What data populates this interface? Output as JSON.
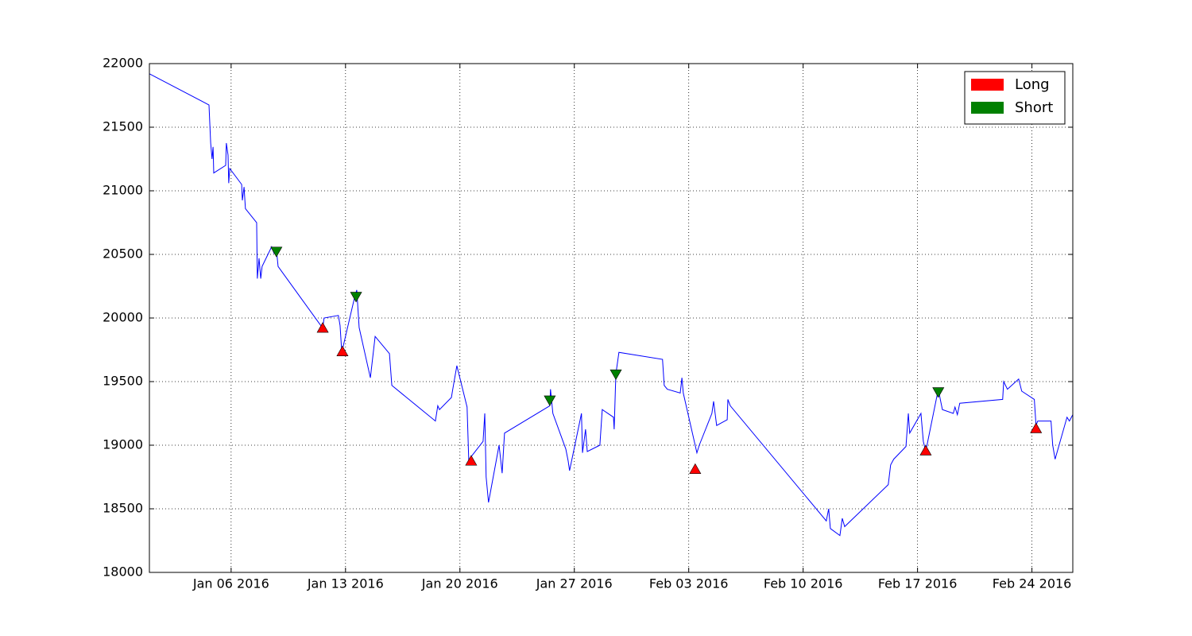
{
  "chart_data": {
    "type": "line",
    "xlim": [
      "2016-01-01 00:00",
      "2016-02-26 12:00"
    ],
    "ylim": [
      18000,
      22000
    ],
    "yticks": [
      18000,
      18500,
      19000,
      19500,
      20000,
      20500,
      21000,
      21500,
      22000
    ],
    "xticks": [
      {
        "value": "2016-01-06 00:00",
        "label": "Jan 06 2016"
      },
      {
        "value": "2016-01-13 00:00",
        "label": "Jan 13 2016"
      },
      {
        "value": "2016-01-20 00:00",
        "label": "Jan 20 2016"
      },
      {
        "value": "2016-01-27 00:00",
        "label": "Jan 27 2016"
      },
      {
        "value": "2016-02-03 00:00",
        "label": "Feb 03 2016"
      },
      {
        "value": "2016-02-10 00:00",
        "label": "Feb 10 2016"
      },
      {
        "value": "2016-02-17 00:00",
        "label": "Feb 17 2016"
      },
      {
        "value": "2016-02-24 00:00",
        "label": "Feb 24 2016"
      }
    ],
    "grid": true,
    "legend": "upper right",
    "series": [
      {
        "color": "#0000ff",
        "x": [
          "2016-01-01 00:00",
          "2016-01-04 15:30",
          "2016-01-04 18:00",
          "2016-01-04 20:00",
          "2016-01-04 21:30",
          "2016-01-04 22:30",
          "2016-01-05 16:00",
          "2016-01-05 17:00",
          "2016-01-05 19:30",
          "2016-01-05 20:30",
          "2016-01-05 22:00",
          "2016-01-06 15:30",
          "2016-01-06 16:30",
          "2016-01-06 19:00",
          "2016-01-06 21:00",
          "2016-01-07 13:30",
          "2016-01-07 14:30",
          "2016-01-07 17:00",
          "2016-01-07 19:30",
          "2016-01-07 21:30",
          "2016-01-08 11:30",
          "2016-01-08 15:00",
          "2016-01-08 18:30",
          "2016-01-08 21:00",
          "2016-01-11 14:30",
          "2016-01-11 16:30",
          "2016-01-12 13:30",
          "2016-01-12 16:00",
          "2016-01-12 18:30",
          "2016-01-13 13:00",
          "2016-01-13 16:30",
          "2016-01-13 20:00",
          "2016-01-14 12:30",
          "2016-01-14 19:30",
          "2016-01-15 16:30",
          "2016-01-15 20:00",
          "2016-01-18 12:00",
          "2016-01-18 15:30",
          "2016-01-18 18:00",
          "2016-01-19 11:30",
          "2016-01-19 13:30",
          "2016-01-19 19:30",
          "2016-01-20 10:30",
          "2016-01-20 13:00",
          "2016-01-20 16:30",
          "2016-01-21 10:00",
          "2016-01-21 12:30",
          "2016-01-21 14:30",
          "2016-01-21 18:00",
          "2016-01-22 09:30",
          "2016-01-22 14:00",
          "2016-01-22 17:30",
          "2016-01-25 12:00",
          "2016-01-25 13:00",
          "2016-01-25 16:30",
          "2016-01-26 11:30",
          "2016-01-26 15:00",
          "2016-01-26 17:00",
          "2016-01-27 10:30",
          "2016-01-27 12:00",
          "2016-01-27 16:30",
          "2016-01-27 19:00",
          "2016-01-28 13:30",
          "2016-01-28 17:00",
          "2016-01-29 09:30",
          "2016-01-29 10:30",
          "2016-01-29 13:00",
          "2016-01-29 17:30",
          "2016-02-01 09:30",
          "2016-02-01 12:00",
          "2016-02-01 16:30",
          "2016-02-02 11:30",
          "2016-02-02 14:00",
          "2016-02-02 16:00",
          "2016-02-03 12:00",
          "2016-02-03 15:30",
          "2016-02-04 10:00",
          "2016-02-04 12:30",
          "2016-02-04 17:00",
          "2016-02-05 08:30",
          "2016-02-05 09:30",
          "2016-02-05 13:00",
          "2016-02-11 10:00",
          "2016-02-11 13:30",
          "2016-02-11 16:00",
          "2016-02-12 06:00",
          "2016-02-12 09:30",
          "2016-02-12 13:00",
          "2016-02-15 05:00",
          "2016-02-15 08:30",
          "2016-02-15 13:00",
          "2016-02-16 07:00",
          "2016-02-16 10:30",
          "2016-02-16 12:30",
          "2016-02-17 05:00",
          "2016-02-17 08:30",
          "2016-02-17 12:00",
          "2016-02-18 06:30",
          "2016-02-18 10:00",
          "2016-02-18 12:30",
          "2016-02-19 04:30",
          "2016-02-19 07:00",
          "2016-02-19 10:30",
          "2016-02-19 14:00",
          "2016-02-22 05:00",
          "2016-02-22 06:30",
          "2016-02-22 12:00",
          "2016-02-23 04:30",
          "2016-02-23 09:00",
          "2016-02-24 03:30",
          "2016-02-24 06:00",
          "2016-02-24 08:30",
          "2016-02-25 04:00",
          "2016-02-25 06:30",
          "2016-02-25 10:00",
          "2016-02-26 03:30",
          "2016-02-26 07:00",
          "2016-02-26 12:00"
        ],
        "values": [
          21920,
          21675,
          21375,
          21250,
          21345,
          21140,
          21200,
          21375,
          21280,
          21060,
          21175,
          21050,
          20925,
          21030,
          20860,
          20750,
          20310,
          20470,
          20310,
          20405,
          20560,
          20510,
          20540,
          20405,
          19920,
          20000,
          20020,
          19940,
          19730,
          20155,
          20220,
          19925,
          19530,
          19855,
          19720,
          19470,
          19190,
          19310,
          19280,
          19375,
          19440,
          19625,
          19300,
          18875,
          18910,
          19030,
          19250,
          18750,
          18550,
          19000,
          18780,
          19095,
          19310,
          19440,
          19250,
          18970,
          18875,
          18800,
          19250,
          18940,
          19125,
          18950,
          19000,
          19280,
          19220,
          19125,
          19560,
          19730,
          19675,
          19470,
          19440,
          19410,
          19530,
          19410,
          18940,
          19000,
          19250,
          19345,
          19155,
          19200,
          19360,
          19310,
          18405,
          18500,
          18345,
          18290,
          18425,
          18360,
          18690,
          18845,
          18890,
          18990,
          19250,
          19095,
          19250,
          19030,
          18950,
          19440,
          19345,
          19280,
          19250,
          19300,
          19240,
          19330,
          19360,
          19500,
          19440,
          19520,
          19425,
          19360,
          19155,
          19190,
          19190,
          19000,
          18890,
          19220,
          19190,
          19240
        ]
      },
      {
        "name": "Long",
        "color": "#ff0000",
        "marker": "triangle-up",
        "x": [
          "2016-01-11 14:30",
          "2016-01-12 19:30",
          "2016-01-20 16:30",
          "2016-02-03 09:30",
          "2016-02-17 12:00",
          "2016-02-24 06:00"
        ],
        "values": [
          19920,
          19735,
          18875,
          18810,
          18955,
          19130
        ]
      },
      {
        "name": "Short",
        "color": "#008000",
        "marker": "triangle-down",
        "x": [
          "2016-01-08 18:30",
          "2016-01-13 15:30",
          "2016-01-25 12:00",
          "2016-01-29 13:00",
          "2016-02-18 06:30"
        ],
        "values": [
          20525,
          20170,
          19355,
          19560,
          19420
        ]
      }
    ]
  }
}
